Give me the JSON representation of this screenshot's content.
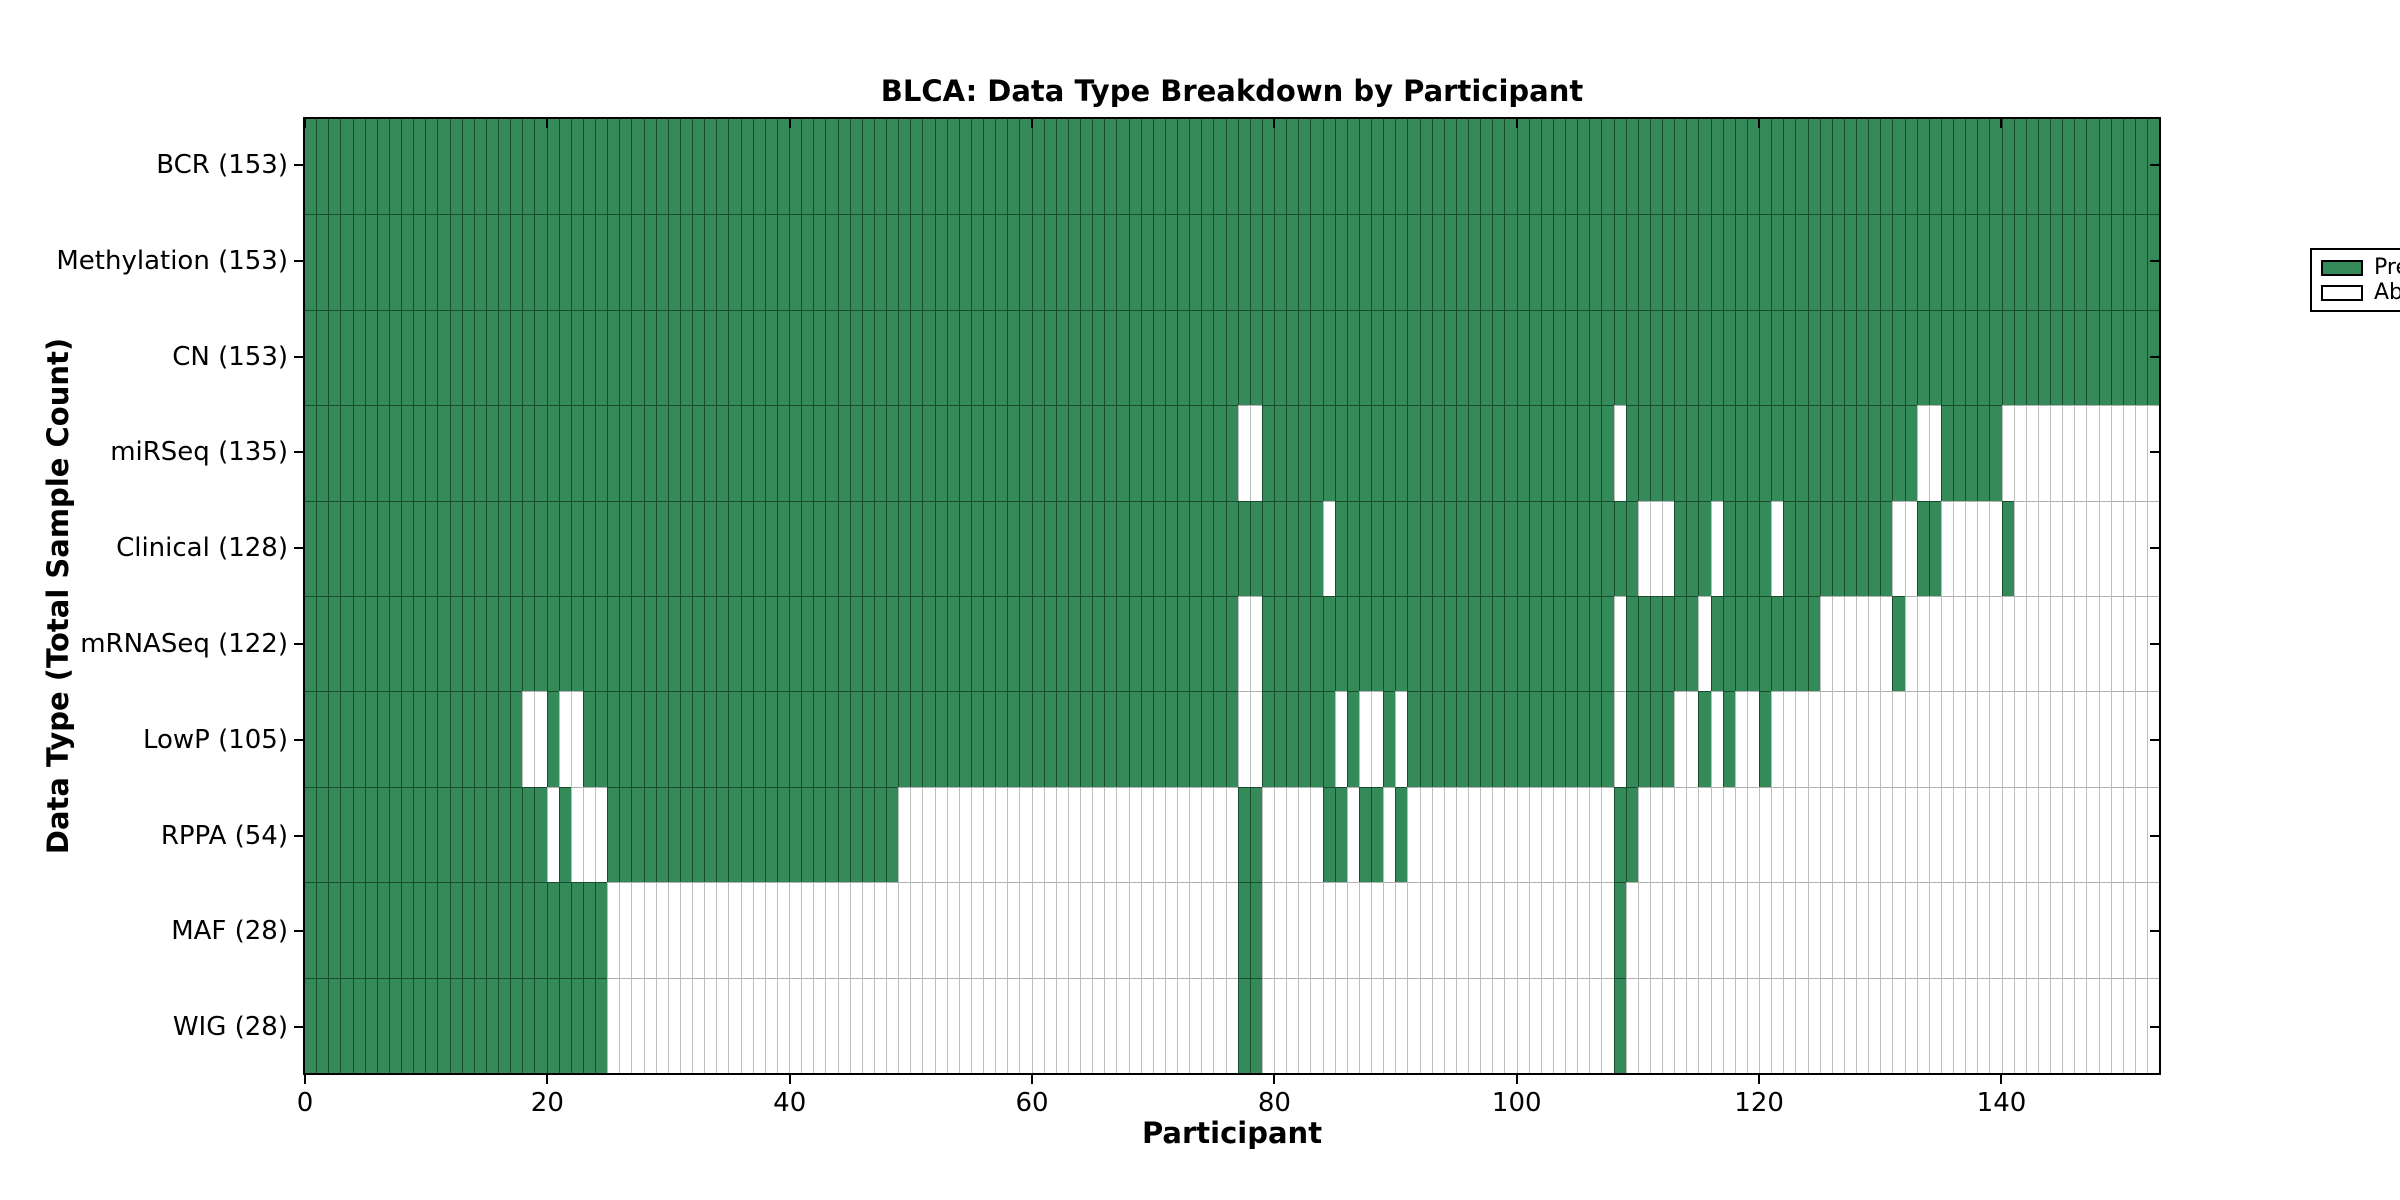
{
  "figure": {
    "title": "BLCA: Data Type Breakdown by Participant"
  },
  "axes": {
    "xlabel": "Participant",
    "ylabel": "Data Type (Total Sample Count)"
  },
  "legend": {
    "present_label": "Present",
    "absent_label": "Absent"
  },
  "colors": {
    "present_green": "#348a58",
    "absent_white": "#ffffff"
  },
  "chart_data": {
    "type": "heatmap",
    "title": "BLCA: Data Type Breakdown by Participant",
    "xlabel": "Participant",
    "ylabel": "Data Type (Total Sample Count)",
    "x_range": [
      0,
      153
    ],
    "n_participants": 153,
    "x_ticks": [
      0,
      20,
      40,
      60,
      80,
      100,
      120,
      140
    ],
    "grid": true,
    "legend_position": "upper right",
    "legend_entries": [
      {
        "label": "Present",
        "color": "#348a58"
      },
      {
        "label": "Absent",
        "color": "#ffffff"
      }
    ],
    "rows": [
      {
        "label": "BCR (153)",
        "data_type": "BCR",
        "total_samples": 153,
        "present_ranges": [
          [
            0,
            152
          ]
        ]
      },
      {
        "label": "Methylation (153)",
        "data_type": "Methylation",
        "total_samples": 153,
        "present_ranges": [
          [
            0,
            152
          ]
        ]
      },
      {
        "label": "CN (153)",
        "data_type": "CN",
        "total_samples": 153,
        "present_ranges": [
          [
            0,
            152
          ]
        ]
      },
      {
        "label": "miRSeq (135)",
        "data_type": "miRSeq",
        "total_samples": 135,
        "present_ranges": [
          [
            0,
            76
          ],
          [
            79,
            107
          ],
          [
            109,
            132
          ],
          [
            135,
            139
          ]
        ]
      },
      {
        "label": "Clinical (128)",
        "data_type": "Clinical",
        "total_samples": 128,
        "present_ranges": [
          [
            0,
            83
          ],
          [
            85,
            109
          ],
          [
            113,
            115
          ],
          [
            117,
            120
          ],
          [
            122,
            130
          ],
          [
            133,
            134
          ],
          [
            140,
            140
          ]
        ]
      },
      {
        "label": "mRNASeq (122)",
        "data_type": "mRNASeq",
        "total_samples": 122,
        "present_ranges": [
          [
            0,
            76
          ],
          [
            79,
            107
          ],
          [
            109,
            114
          ],
          [
            116,
            124
          ],
          [
            131,
            131
          ]
        ]
      },
      {
        "label": "LowP (105)",
        "data_type": "LowP",
        "total_samples": 105,
        "present_ranges": [
          [
            0,
            17
          ],
          [
            20,
            20
          ],
          [
            23,
            76
          ],
          [
            79,
            84
          ],
          [
            86,
            86
          ],
          [
            89,
            89
          ],
          [
            91,
            107
          ],
          [
            109,
            112
          ],
          [
            115,
            115
          ],
          [
            117,
            117
          ],
          [
            120,
            120
          ]
        ]
      },
      {
        "label": "RPPA (54)",
        "data_type": "RPPA",
        "total_samples": 54,
        "present_ranges": [
          [
            0,
            19
          ],
          [
            21,
            21
          ],
          [
            25,
            48
          ],
          [
            77,
            78
          ],
          [
            84,
            85
          ],
          [
            87,
            88
          ],
          [
            90,
            90
          ],
          [
            108,
            109
          ]
        ]
      },
      {
        "label": "MAF (28)",
        "data_type": "MAF",
        "total_samples": 28,
        "present_ranges": [
          [
            0,
            24
          ],
          [
            77,
            78
          ],
          [
            108,
            108
          ]
        ]
      },
      {
        "label": "WIG (28)",
        "data_type": "WIG",
        "total_samples": 28,
        "present_ranges": [
          [
            0,
            24
          ],
          [
            77,
            78
          ],
          [
            108,
            108
          ]
        ]
      }
    ]
  }
}
